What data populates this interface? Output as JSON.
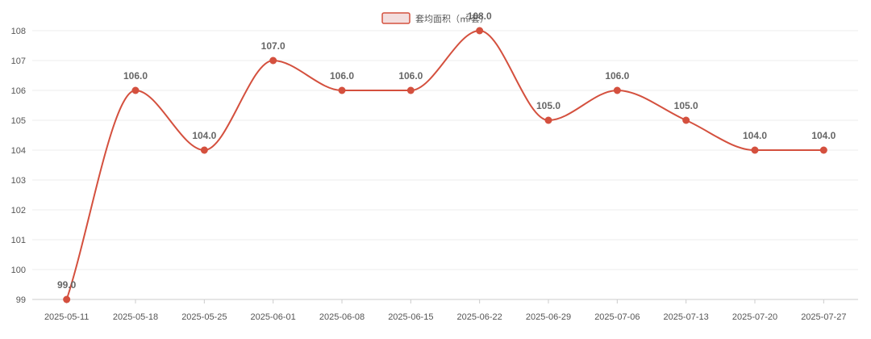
{
  "chart_data": {
    "type": "line",
    "title": "",
    "xlabel": "",
    "ylabel": "",
    "categories": [
      "2025-05-11",
      "2025-05-18",
      "2025-05-25",
      "2025-06-01",
      "2025-06-08",
      "2025-06-15",
      "2025-06-22",
      "2025-06-29",
      "2025-07-06",
      "2025-07-13",
      "2025-07-20",
      "2025-07-27"
    ],
    "series": [
      {
        "name": "套均面积（㎡/套）",
        "values": [
          99.0,
          106.0,
          104.0,
          107.0,
          106.0,
          106.0,
          108.0,
          105.0,
          106.0,
          105.0,
          104.0,
          104.0
        ],
        "labels": [
          "99.0",
          "106.0",
          "104.0",
          "107.0",
          "106.0",
          "106.0",
          "108.0",
          "105.0",
          "106.0",
          "105.0",
          "104.0",
          "104.0"
        ],
        "color": "#d4503e"
      }
    ],
    "ylim": [
      99,
      108
    ],
    "yticks": [
      "99",
      "100",
      "101",
      "102",
      "103",
      "104",
      "105",
      "106",
      "107",
      "108"
    ],
    "grid": true,
    "smooth": true,
    "legend": "top-center",
    "legend_fill": "#f3dede"
  }
}
